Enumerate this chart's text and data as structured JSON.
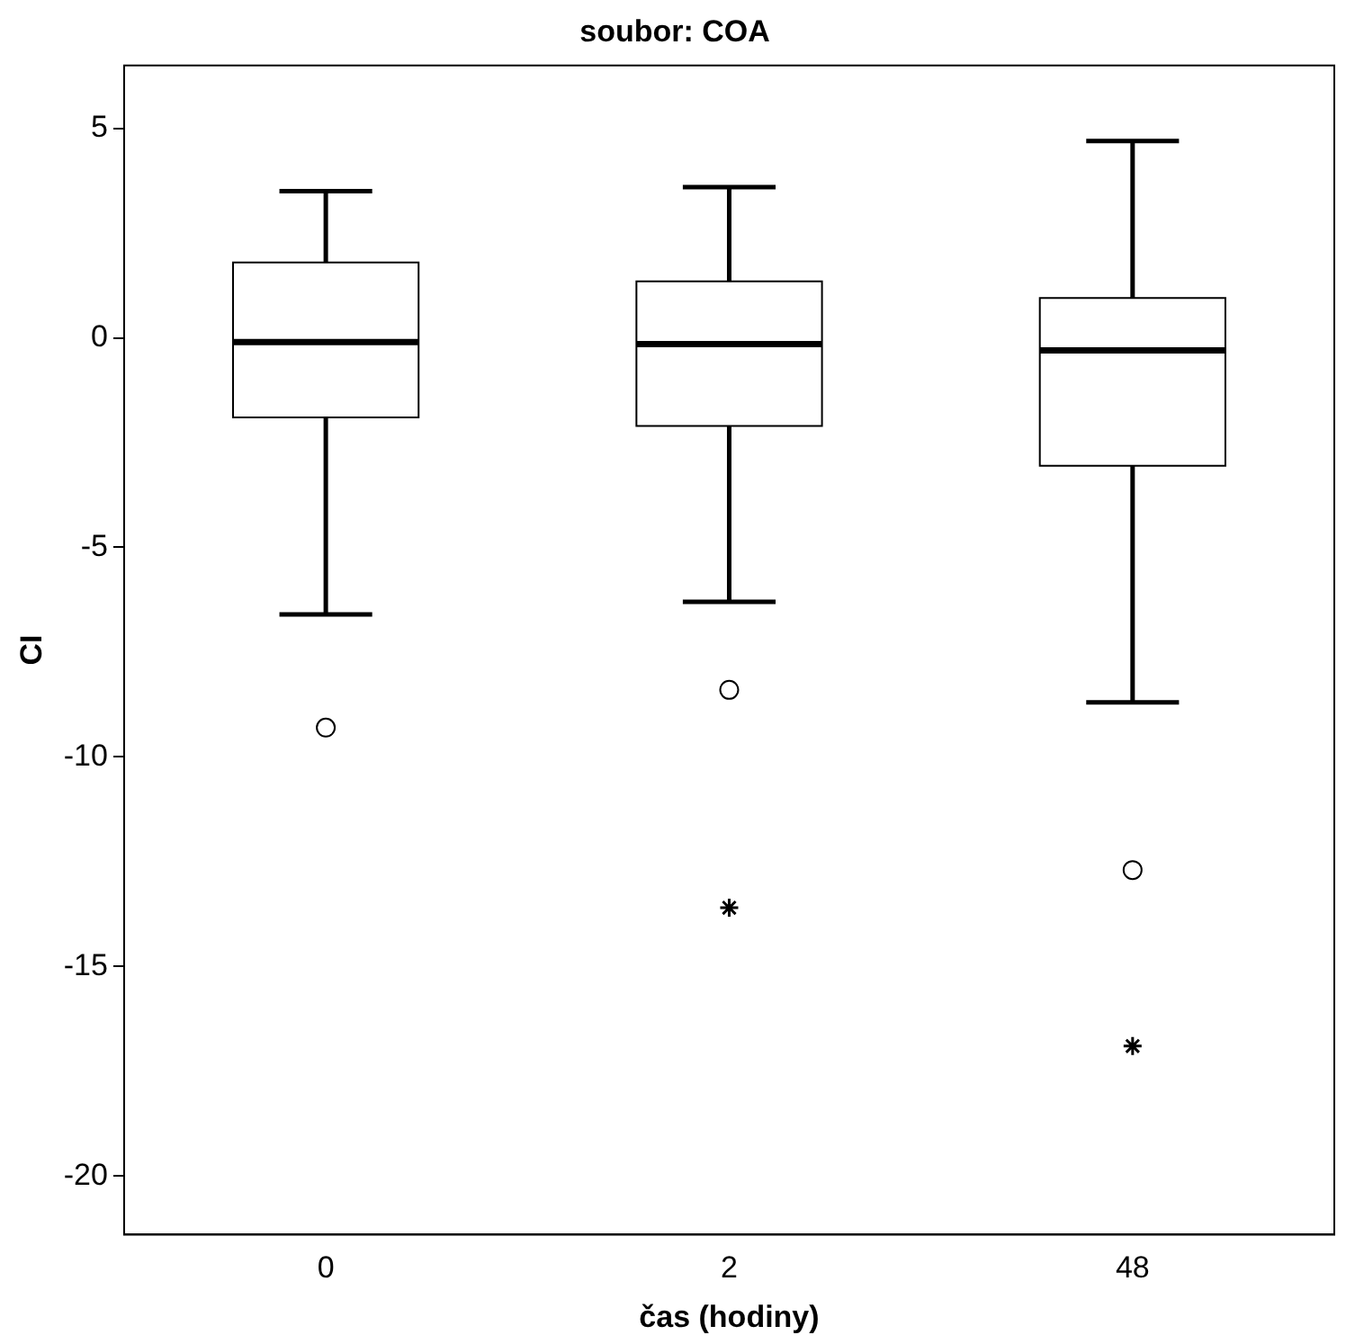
{
  "chart_data": {
    "type": "box",
    "title": "soubor: COA",
    "xlabel": "čas (hodiny)",
    "ylabel": "CI",
    "categories": [
      "0",
      "2",
      "48"
    ],
    "boxes": [
      {
        "low": -6.6,
        "q1": -1.9,
        "median": -0.1,
        "q3": 1.8,
        "high": 3.5,
        "outliers": [
          -9.3
        ]
      },
      {
        "low": -6.3,
        "q1": -2.1,
        "median": -0.15,
        "q3": 1.35,
        "high": 3.6,
        "outliers": [
          -8.4
        ]
      },
      {
        "low": -8.7,
        "q1": -3.05,
        "median": -0.3,
        "q3": 0.95,
        "high": 4.7,
        "outliers": [
          -12.7
        ]
      }
    ],
    "series": [
      {
        "type": "scatter",
        "marker": "cross",
        "color": "#000000",
        "x": [
          "2",
          "48"
        ],
        "values": [
          -13.6,
          -16.9
        ]
      }
    ],
    "ylim": [
      -21.4,
      6.5
    ],
    "yticks": [
      -20,
      -15,
      -10,
      -5,
      0,
      5
    ],
    "grid": false,
    "legend": false
  }
}
